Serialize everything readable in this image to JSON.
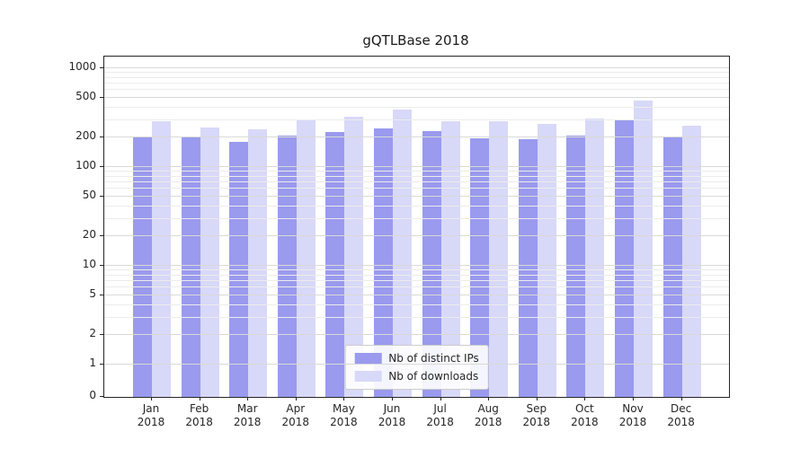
{
  "title": "gQTLBase 2018",
  "chart_data": {
    "type": "bar",
    "title": "gQTLBase 2018",
    "categories": [
      "Jan 2018",
      "Feb 2018",
      "Mar 2018",
      "Apr 2018",
      "May 2018",
      "Jun 2018",
      "Jul 2018",
      "Aug 2018",
      "Sep 2018",
      "Oct 2018",
      "Nov 2018",
      "Dec 2018"
    ],
    "series": [
      {
        "name": "Nb of distinct IPs",
        "color": "#9a9aee",
        "values": [
          205,
          198,
          178,
          206,
          224,
          248,
          229,
          196,
          190,
          208,
          300,
          198
        ]
      },
      {
        "name": "Nb of downloads",
        "color": "#d8d8f8",
        "values": [
          290,
          252,
          242,
          295,
          320,
          385,
          292,
          288,
          272,
          312,
          468,
          262
        ]
      }
    ],
    "y_scale": "symlog",
    "y_ticks": [
      0,
      1,
      2,
      5,
      10,
      20,
      50,
      100,
      200,
      500,
      1000
    ],
    "ylim": [
      0,
      1300
    ],
    "grid": true,
    "legend_position": "lower center"
  }
}
